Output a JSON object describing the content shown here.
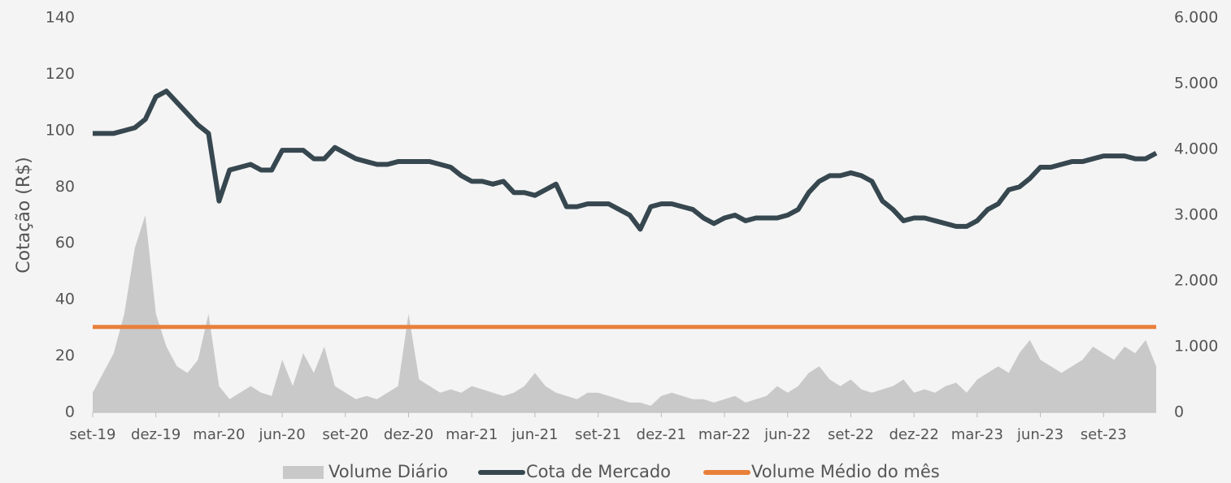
{
  "chart_data": {
    "type": "line",
    "ylabel": "Cotação (R$)",
    "categories": [
      "set-19",
      null,
      null,
      null,
      null,
      null,
      "dez-19",
      null,
      null,
      null,
      null,
      null,
      "mar-20",
      null,
      null,
      null,
      null,
      null,
      "jun-20",
      null,
      null,
      null,
      null,
      null,
      "set-20",
      null,
      null,
      null,
      null,
      null,
      "dez-20",
      null,
      null,
      null,
      null,
      null,
      "mar-21",
      null,
      null,
      null,
      null,
      null,
      "jun-21",
      null,
      null,
      null,
      null,
      null,
      "set-21",
      null,
      null,
      null,
      null,
      null,
      "dez-21",
      null,
      null,
      null,
      null,
      null,
      "mar-22",
      null,
      null,
      null,
      null,
      null,
      "jun-22",
      null,
      null,
      null,
      null,
      null,
      "set-22",
      null,
      null,
      null,
      null,
      null,
      "dez-22",
      null,
      null,
      null,
      null,
      null,
      "mar-23",
      null,
      null,
      null,
      null,
      null,
      "jun-23",
      null,
      null,
      null,
      null,
      null,
      "set-23",
      null,
      null,
      null,
      null,
      null
    ],
    "ylim": [
      0,
      140
    ],
    "yticks": [
      0,
      20,
      40,
      60,
      80,
      100,
      120,
      140
    ],
    "y2lim": [
      0,
      6000
    ],
    "y2ticks": [
      0,
      {
        "value": 1000,
        "label": "1.000"
      },
      {
        "value": 2000,
        "label": "2.000"
      },
      {
        "value": 3000,
        "label": "3.000"
      },
      {
        "value": 4000,
        "label": "4.000"
      },
      {
        "value": 5000,
        "label": "5.000"
      },
      {
        "value": 6000,
        "label": "6.000"
      }
    ],
    "series": [
      {
        "name": "Volume Diário",
        "kind": "area",
        "axis": "y2",
        "color": "#c9c9c9",
        "values": [
          300,
          600,
          900,
          1500,
          2500,
          3000,
          1500,
          1000,
          700,
          600,
          800,
          1500,
          400,
          200,
          300,
          400,
          300,
          250,
          800,
          400,
          900,
          600,
          1000,
          400,
          300,
          200,
          250,
          200,
          300,
          400,
          1500,
          500,
          400,
          300,
          350,
          300,
          400,
          350,
          300,
          250,
          300,
          400,
          600,
          400,
          300,
          250,
          200,
          300,
          300,
          250,
          200,
          150,
          150,
          100,
          250,
          300,
          250,
          200,
          200,
          150,
          200,
          250,
          150,
          200,
          250,
          400,
          300,
          400,
          600,
          700,
          500,
          400,
          500,
          350,
          300,
          350,
          400,
          500,
          300,
          350,
          300,
          400,
          450,
          300,
          500,
          600,
          700,
          600,
          900,
          1100,
          800,
          700,
          600,
          700,
          800,
          1000,
          900,
          800,
          1000,
          900,
          1100,
          700
        ]
      },
      {
        "name": "Cota de Mercado",
        "kind": "line",
        "axis": "y",
        "color": "#37474f",
        "values": [
          99,
          99,
          99,
          100,
          101,
          104,
          112,
          114,
          110,
          106,
          102,
          99,
          75,
          86,
          87,
          88,
          86,
          86,
          93,
          93,
          93,
          90,
          90,
          94,
          92,
          90,
          89,
          88,
          88,
          89,
          89,
          89,
          89,
          88,
          87,
          84,
          82,
          82,
          81,
          82,
          78,
          78,
          77,
          79,
          81,
          73,
          73,
          74,
          74,
          74,
          72,
          70,
          65,
          73,
          74,
          74,
          73,
          72,
          69,
          67,
          69,
          70,
          68,
          69,
          69,
          69,
          70,
          72,
          78,
          82,
          84,
          84,
          85,
          84,
          82,
          75,
          72,
          68,
          69,
          69,
          68,
          67,
          66,
          66,
          68,
          72,
          74,
          79,
          80,
          83,
          87,
          87,
          88,
          89,
          89,
          90,
          91,
          91,
          91,
          90,
          90,
          92
        ]
      },
      {
        "name": "Volume Médio do mês",
        "kind": "line",
        "axis": "y2",
        "color": "#e8803a",
        "values": [
          1300,
          1300,
          1300,
          1300,
          1300,
          1300,
          1300,
          1300,
          1300,
          1300,
          1300,
          1300,
          1300,
          1300,
          1300,
          1300,
          1300,
          1300,
          1300,
          1300,
          1300,
          1300,
          1300,
          1300,
          1300,
          1300,
          1300,
          1300,
          1300,
          1300,
          1300,
          1300,
          1300,
          1300,
          1300,
          1300,
          1300,
          1300,
          1300,
          1300,
          1300,
          1300,
          1300,
          1300,
          1300,
          1300,
          1300,
          1300,
          1300,
          1300,
          1300,
          1300,
          1300,
          1300,
          1300,
          1300,
          1300,
          1300,
          1300,
          1300,
          1300,
          1300,
          1300,
          1300,
          1300,
          1300,
          1300,
          1300,
          1300,
          1300,
          1300,
          1300,
          1300,
          1300,
          1300,
          1300,
          1300,
          1300,
          1300,
          1300,
          1300,
          1300,
          1300,
          1300,
          1300,
          1300,
          1300,
          1300,
          1300,
          1300,
          1300,
          1300,
          1300,
          1300,
          1300,
          1300,
          1300,
          1300,
          1300,
          1300,
          1300,
          1300
        ]
      }
    ]
  }
}
